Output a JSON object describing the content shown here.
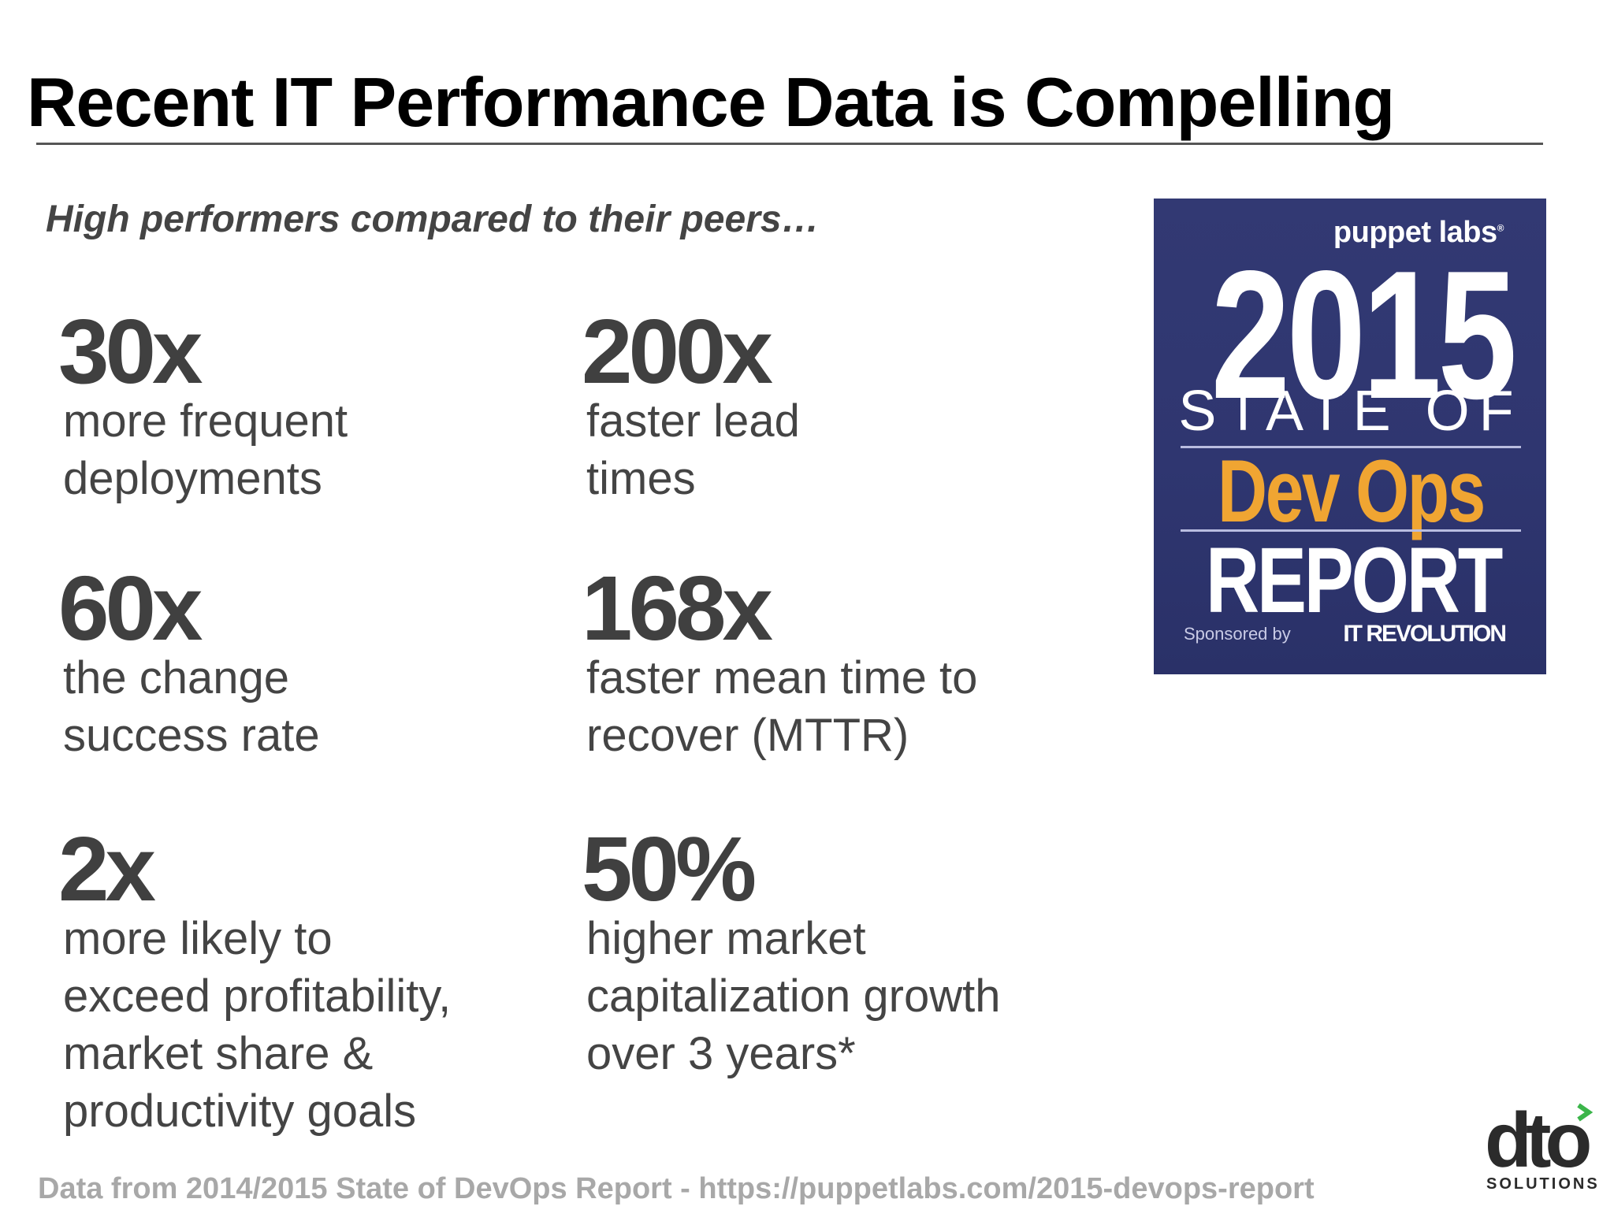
{
  "slide": {
    "title": "Recent IT Performance Data is Compelling",
    "subtitle": "High performers compared to their peers…",
    "stats": [
      {
        "value": "30x",
        "lines": [
          "more frequent",
          "deployments"
        ]
      },
      {
        "value": "200x",
        "lines": [
          "faster lead",
          "times"
        ]
      },
      {
        "value": "60x",
        "lines": [
          "the change",
          "success rate"
        ]
      },
      {
        "value": "168x",
        "lines": [
          "faster mean time to",
          "recover (MTTR)"
        ]
      },
      {
        "value": "2x",
        "lines": [
          "more likely to",
          "exceed profitability,",
          "market share &",
          "productivity goals"
        ]
      },
      {
        "value": "50%",
        "lines": [
          "higher market",
          "capitalization growth",
          "over 3 years*"
        ]
      }
    ],
    "footer": "Data from 2014/2015 State of DevOps Report  - https://puppetlabs.com/2015-devops-report"
  },
  "report_cover": {
    "brand": "puppet labs",
    "year": "2015",
    "state_of": "STATE OF",
    "devops": "Dev Ops",
    "report": "REPORT",
    "sponsored_by": "Sponsored by",
    "sponsor": "IT REVOLUTION",
    "colors": {
      "background": "#323973",
      "accent": "#f0a532"
    }
  },
  "logo": {
    "word": "dto",
    "sub": "SOLUTIONS",
    "accent_color": "#3bb54a"
  }
}
